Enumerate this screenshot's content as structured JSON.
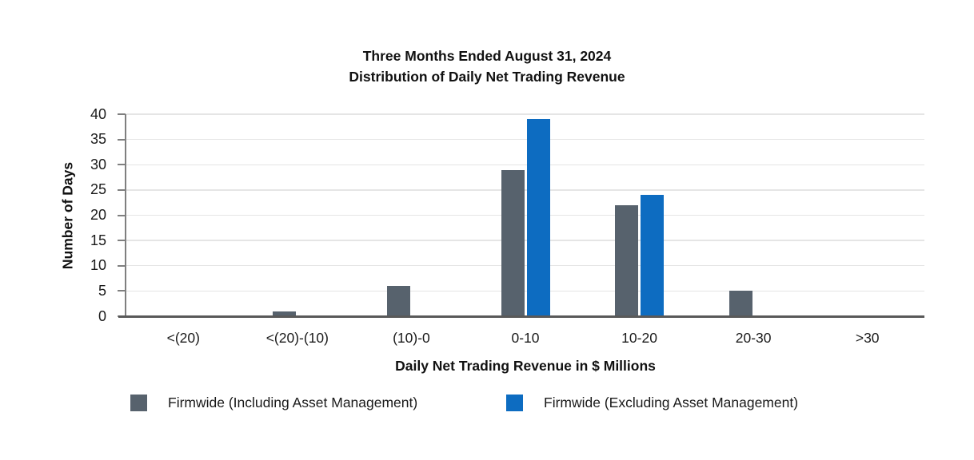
{
  "chart": {
    "title_line1": "Three Months Ended August 31, 2024",
    "title_line2": "Distribution of Daily Net Trading Revenue",
    "xlabel": "Daily Net Trading Revenue in $ Millions",
    "ylabel": "Number of Days"
  },
  "chart_data": {
    "type": "bar",
    "title": "Three Months Ended August 31, 2024",
    "subtitle": "Distribution of Daily Net Trading Revenue",
    "categories": [
      "<(20)",
      "<(20)-(10)",
      "(10)-0",
      "0-10",
      "10-20",
      "20-30",
      ">30"
    ],
    "series": [
      {
        "name": "Firmwide (Including Asset Management)",
        "color": "#57626d",
        "values": [
          0,
          1,
          6,
          29,
          22,
          5,
          0
        ]
      },
      {
        "name": "Firmwide (Excluding Asset Management)",
        "color": "#0d6cc1",
        "values": [
          0,
          0,
          0,
          39,
          24,
          0,
          0
        ]
      }
    ],
    "xlabel": "Daily Net Trading Revenue in $ Millions",
    "ylabel": "Number of Days",
    "ylim": [
      0,
      40
    ],
    "yticks": [
      0,
      5,
      10,
      15,
      20,
      25,
      30,
      35,
      40
    ],
    "grid": "horizontal",
    "legend_position": "bottom"
  },
  "colors": {
    "gridline": "#e5e5e5",
    "axis_line": "#7f7f7f",
    "baseline": "#595959",
    "text": "#1a1a1a"
  }
}
